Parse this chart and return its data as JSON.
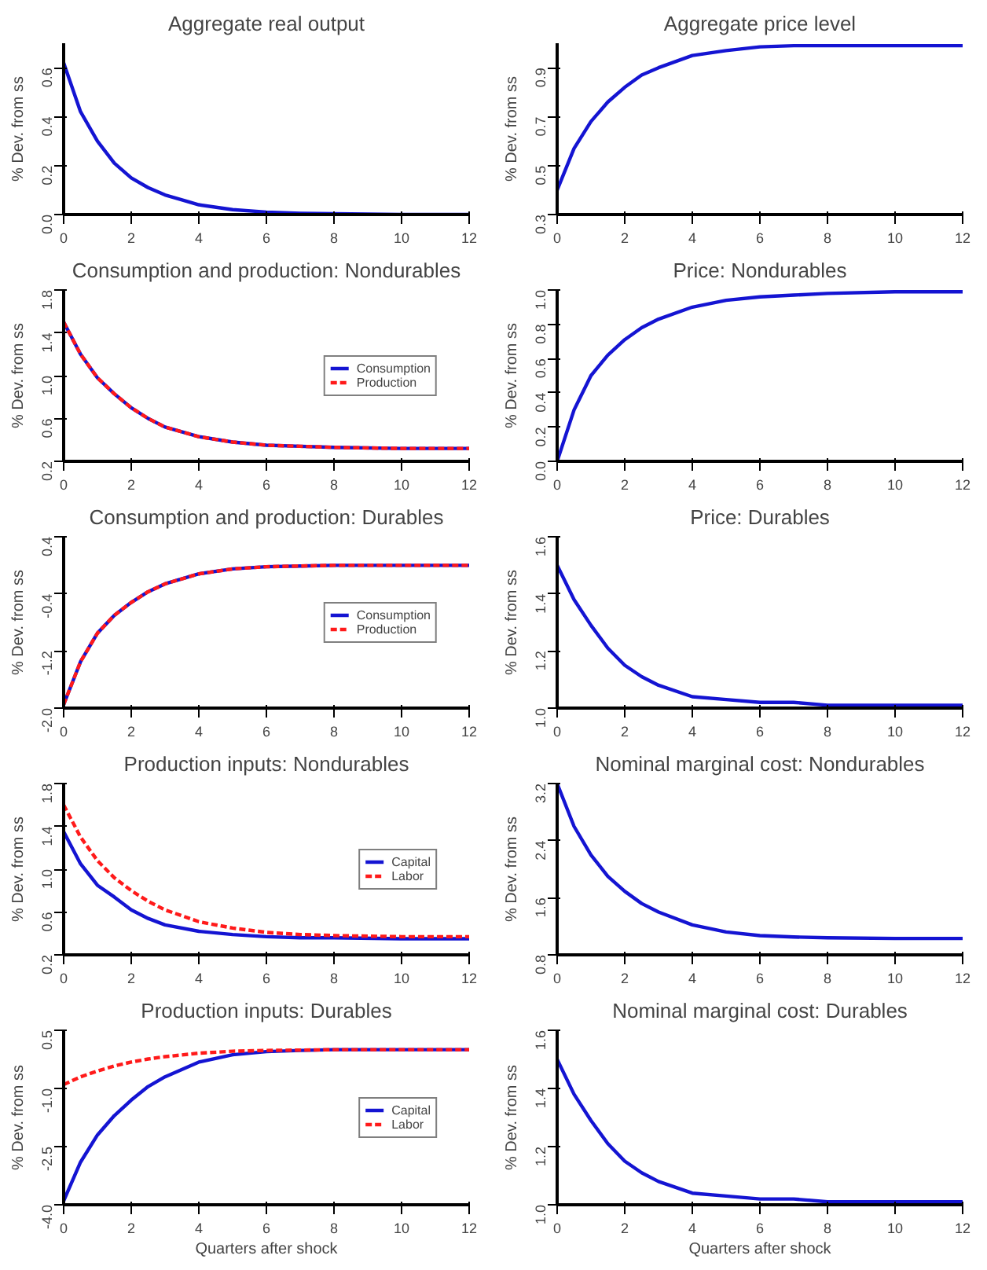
{
  "chart_data": [
    {
      "type": "line",
      "title": "Aggregate real output",
      "ylabel": "% Dev. from ss",
      "x": [
        0,
        0.5,
        1,
        1.5,
        2,
        2.5,
        3,
        4,
        5,
        6,
        7,
        8,
        10,
        12
      ],
      "xlim": [
        0,
        12
      ],
      "xticks": [
        0,
        2,
        4,
        6,
        8,
        10,
        12
      ],
      "ylim": [
        0,
        0.7
      ],
      "yticks": [
        {
          "value": 0,
          "label": "0.0"
        },
        0.2,
        0.4,
        0.6
      ],
      "series": [
        {
          "color": "#1414d2",
          "line_style": "solid",
          "values": [
            0.62,
            0.42,
            0.3,
            0.21,
            0.15,
            0.11,
            0.08,
            0.04,
            0.02,
            0.01,
            0.005,
            0.003,
            0,
            0
          ]
        }
      ]
    },
    {
      "type": "line",
      "title": "Aggregate price level",
      "ylabel": "% Dev. from ss",
      "x": [
        0,
        0.5,
        1,
        1.5,
        2,
        2.5,
        3,
        4,
        5,
        6,
        7,
        8,
        10,
        12
      ],
      "xlim": [
        0,
        12
      ],
      "xticks": [
        0,
        2,
        4,
        6,
        8,
        10,
        12
      ],
      "ylim": [
        0.3,
        1.0
      ],
      "yticks": [
        0.3,
        0.5,
        0.7,
        0.9
      ],
      "series": [
        {
          "color": "#1414d2",
          "line_style": "solid",
          "values": [
            0.4,
            0.57,
            0.68,
            0.76,
            0.82,
            0.87,
            0.9,
            0.95,
            0.97,
            0.985,
            0.99,
            0.99,
            0.99,
            0.99
          ]
        }
      ]
    },
    {
      "type": "line",
      "title": "Consumption and production: Nondurables",
      "ylabel": "% Dev. from ss",
      "x": [
        0,
        0.5,
        1,
        1.5,
        2,
        2.5,
        3,
        4,
        5,
        6,
        7,
        8,
        10,
        12
      ],
      "xlim": [
        0,
        12
      ],
      "xticks": [
        0,
        2,
        4,
        6,
        8,
        10,
        12
      ],
      "ylim": [
        0.2,
        1.8
      ],
      "yticks": [
        0.2,
        0.6,
        {
          "value": 1,
          "label": "1.0"
        },
        1.4,
        1.8
      ],
      "legend": "right",
      "series": [
        {
          "name": "Consumption",
          "color": "#1414d2",
          "line_style": "solid",
          "values": [
            1.5,
            1.2,
            0.98,
            0.83,
            0.7,
            0.6,
            0.52,
            0.43,
            0.38,
            0.35,
            0.34,
            0.33,
            0.32,
            0.32
          ]
        },
        {
          "name": "Production",
          "color": "#ff1a1a",
          "line_style": "dashed",
          "values": [
            1.5,
            1.2,
            0.98,
            0.83,
            0.7,
            0.6,
            0.52,
            0.43,
            0.38,
            0.35,
            0.34,
            0.33,
            0.32,
            0.32
          ]
        }
      ]
    },
    {
      "type": "line",
      "title": "Price: Nondurables",
      "ylabel": "% Dev. from ss",
      "x": [
        0,
        0.5,
        1,
        1.5,
        2,
        2.5,
        3,
        4,
        5,
        6,
        7,
        8,
        10,
        12
      ],
      "xlim": [
        0,
        12
      ],
      "xticks": [
        0,
        2,
        4,
        6,
        8,
        10,
        12
      ],
      "ylim": [
        0.0,
        1.0
      ],
      "yticks": [
        {
          "value": 0,
          "label": "0.0"
        },
        0.2,
        0.4,
        0.6,
        0.8,
        {
          "value": 1,
          "label": "1.0"
        }
      ],
      "series": [
        {
          "color": "#1414d2",
          "line_style": "solid",
          "values": [
            0.0,
            0.3,
            0.5,
            0.62,
            0.71,
            0.78,
            0.83,
            0.9,
            0.94,
            0.96,
            0.97,
            0.98,
            0.99,
            0.99
          ]
        }
      ]
    },
    {
      "type": "line",
      "title": "Consumption and production: Durables",
      "ylabel": "% Dev. from ss",
      "x": [
        0,
        0.5,
        1,
        1.5,
        2,
        2.5,
        3,
        4,
        5,
        6,
        7,
        8,
        10,
        12
      ],
      "xlim": [
        0,
        12
      ],
      "xticks": [
        0,
        2,
        4,
        6,
        8,
        10,
        12
      ],
      "ylim": [
        -2.0,
        0.4
      ],
      "yticks": [
        {
          "value": -2,
          "label": "-2.0"
        },
        -1.2,
        -0.4,
        0.4
      ],
      "legend": "right",
      "series": [
        {
          "name": "Consumption",
          "color": "#1414d2",
          "line_style": "solid",
          "values": [
            -1.95,
            -1.35,
            -0.95,
            -0.7,
            -0.52,
            -0.37,
            -0.26,
            -0.12,
            -0.05,
            -0.02,
            -0.01,
            0,
            0,
            0
          ]
        },
        {
          "name": "Production",
          "color": "#ff1a1a",
          "line_style": "dashed",
          "values": [
            -1.95,
            -1.35,
            -0.95,
            -0.7,
            -0.52,
            -0.37,
            -0.26,
            -0.12,
            -0.05,
            -0.02,
            -0.01,
            0,
            0,
            0
          ]
        }
      ]
    },
    {
      "type": "line",
      "title": "Price: Durables",
      "ylabel": "% Dev. from ss",
      "x": [
        0,
        0.5,
        1,
        1.5,
        2,
        2.5,
        3,
        4,
        5,
        6,
        7,
        8,
        10,
        12
      ],
      "xlim": [
        0,
        12
      ],
      "xticks": [
        0,
        2,
        4,
        6,
        8,
        10,
        12
      ],
      "ylim": [
        1.0,
        1.6
      ],
      "yticks": [
        {
          "value": 1,
          "label": "1.0"
        },
        1.2,
        1.4,
        1.6
      ],
      "series": [
        {
          "color": "#1414d2",
          "line_style": "solid",
          "values": [
            1.5,
            1.38,
            1.29,
            1.21,
            1.15,
            1.11,
            1.08,
            1.04,
            1.03,
            1.02,
            1.02,
            1.01,
            1.01,
            1.01
          ]
        }
      ]
    },
    {
      "type": "line",
      "title": "Production inputs: Nondurables",
      "ylabel": "% Dev. from ss",
      "x": [
        0,
        0.5,
        1,
        1.5,
        2,
        2.5,
        3,
        4,
        5,
        6,
        7,
        8,
        10,
        12
      ],
      "xlim": [
        0,
        12
      ],
      "xticks": [
        0,
        2,
        4,
        6,
        8,
        10,
        12
      ],
      "ylim": [
        0.2,
        1.8
      ],
      "yticks": [
        0.2,
        0.6,
        {
          "value": 1,
          "label": "1.0"
        },
        1.4,
        1.8
      ],
      "legend": "right",
      "series": [
        {
          "name": "Capital",
          "color": "#1414d2",
          "line_style": "solid",
          "values": [
            1.35,
            1.05,
            0.85,
            0.74,
            0.62,
            0.54,
            0.48,
            0.42,
            0.39,
            0.37,
            0.36,
            0.36,
            0.35,
            0.35
          ]
        },
        {
          "name": "Labor",
          "color": "#ff1a1a",
          "line_style": "dashed",
          "values": [
            1.6,
            1.3,
            1.08,
            0.92,
            0.8,
            0.7,
            0.62,
            0.51,
            0.45,
            0.41,
            0.39,
            0.38,
            0.37,
            0.37
          ]
        }
      ]
    },
    {
      "type": "line",
      "title": "Nominal marginal cost: Nondurables",
      "ylabel": "% Dev. from ss",
      "x": [
        0,
        0.5,
        1,
        1.5,
        2,
        2.5,
        3,
        4,
        5,
        6,
        7,
        8,
        10,
        12
      ],
      "xlim": [
        0,
        12
      ],
      "xticks": [
        0,
        2,
        4,
        6,
        8,
        10,
        12
      ],
      "ylim": [
        0.8,
        3.2
      ],
      "yticks": [
        0.8,
        1.6,
        2.4,
        3.2
      ],
      "series": [
        {
          "color": "#1414d2",
          "line_style": "solid",
          "values": [
            3.2,
            2.6,
            2.2,
            1.9,
            1.69,
            1.52,
            1.4,
            1.22,
            1.12,
            1.07,
            1.05,
            1.04,
            1.03,
            1.03
          ]
        }
      ]
    },
    {
      "type": "line",
      "title": "Production inputs: Durables",
      "ylabel": "% Dev. from ss",
      "xlabel": "Quarters after shock",
      "x": [
        0,
        0.5,
        1,
        1.5,
        2,
        2.5,
        3,
        4,
        5,
        6,
        7,
        8,
        10,
        12
      ],
      "xlim": [
        0,
        12
      ],
      "xticks": [
        0,
        2,
        4,
        6,
        8,
        10,
        12
      ],
      "ylim": [
        -4.0,
        0.5
      ],
      "yticks": [
        {
          "value": -4,
          "label": "-4.0"
        },
        -2.5,
        {
          "value": -1,
          "label": "-1.0"
        },
        0.5
      ],
      "legend": "right",
      "series": [
        {
          "name": "Capital",
          "color": "#1414d2",
          "line_style": "solid",
          "values": [
            -3.9,
            -2.9,
            -2.2,
            -1.7,
            -1.3,
            -0.95,
            -0.7,
            -0.32,
            -0.13,
            -0.05,
            -0.02,
            0,
            0,
            0
          ]
        },
        {
          "name": "Labor",
          "color": "#ff1a1a",
          "line_style": "dashed",
          "values": [
            -0.9,
            -0.7,
            -0.55,
            -0.42,
            -0.32,
            -0.24,
            -0.18,
            -0.09,
            -0.04,
            -0.02,
            -0.01,
            0,
            0,
            0
          ]
        }
      ]
    },
    {
      "type": "line",
      "title": "Nominal marginal cost: Durables",
      "ylabel": "% Dev. from ss",
      "xlabel": "Quarters after shock",
      "x": [
        0,
        0.5,
        1,
        1.5,
        2,
        2.5,
        3,
        4,
        5,
        6,
        7,
        8,
        10,
        12
      ],
      "xlim": [
        0,
        12
      ],
      "xticks": [
        0,
        2,
        4,
        6,
        8,
        10,
        12
      ],
      "ylim": [
        1.0,
        1.6
      ],
      "yticks": [
        {
          "value": 1,
          "label": "1.0"
        },
        1.2,
        1.4,
        1.6
      ],
      "series": [
        {
          "color": "#1414d2",
          "line_style": "solid",
          "values": [
            1.5,
            1.38,
            1.29,
            1.21,
            1.15,
            1.11,
            1.08,
            1.04,
            1.03,
            1.02,
            1.02,
            1.01,
            1.01,
            1.01
          ]
        }
      ]
    }
  ]
}
